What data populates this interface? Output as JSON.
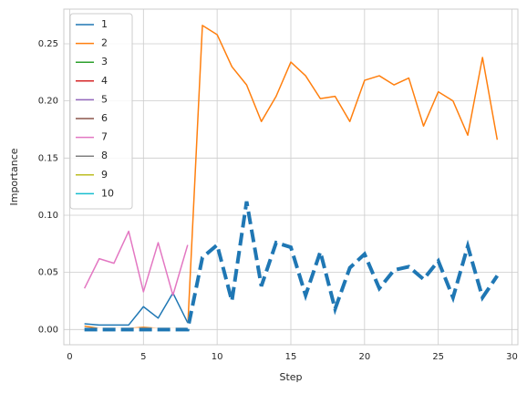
{
  "chart_data": {
    "type": "line",
    "x_label": "Step",
    "y_label": "Importance",
    "x": [
      1,
      2,
      3,
      4,
      5,
      6,
      7,
      8,
      9,
      10,
      11,
      12,
      13,
      14,
      15,
      16,
      17,
      18,
      19,
      20,
      21,
      22,
      23,
      24,
      25,
      26,
      27,
      28,
      29
    ],
    "series": [
      {
        "name": "1",
        "color": "#1f77b4",
        "values": [
          0.005,
          0.004,
          0.004,
          0.004,
          0.02,
          0.01,
          0.032,
          0.006,
          null,
          null,
          null,
          null,
          null,
          null,
          null,
          null,
          null,
          null,
          null,
          null,
          null,
          null,
          null,
          null,
          null,
          null,
          null,
          null,
          null
        ]
      },
      {
        "name": "2",
        "color": "#ff7f0e",
        "values": [
          0.003,
          0.001,
          0.001,
          0.001,
          0.002,
          0.001,
          0.001,
          0.001,
          0.266,
          0.258,
          0.23,
          0.214,
          0.182,
          0.204,
          0.234,
          0.222,
          0.202,
          0.204,
          0.182,
          0.218,
          0.222,
          0.214,
          0.22,
          0.178,
          0.208,
          0.2,
          0.17,
          0.238,
          0.166
        ]
      },
      {
        "name": "3",
        "color": "#2ca02c",
        "values": [
          0,
          0,
          0,
          0,
          0,
          0,
          0,
          0,
          null,
          null,
          null,
          null,
          null,
          null,
          null,
          null,
          null,
          null,
          null,
          null,
          null,
          null,
          null,
          null,
          null,
          null,
          null,
          null,
          null
        ]
      },
      {
        "name": "4",
        "color": "#d62728",
        "values": [
          0,
          0,
          0,
          0,
          0,
          0,
          0,
          0,
          null,
          null,
          null,
          null,
          null,
          null,
          null,
          null,
          null,
          null,
          null,
          null,
          null,
          null,
          null,
          null,
          null,
          null,
          null,
          null,
          null
        ]
      },
      {
        "name": "5",
        "color": "#9467bd",
        "values": [
          0,
          0,
          0,
          0,
          0,
          0,
          0,
          0,
          null,
          null,
          null,
          null,
          null,
          null,
          null,
          null,
          null,
          null,
          null,
          null,
          null,
          null,
          null,
          null,
          null,
          null,
          null,
          null,
          null
        ]
      },
      {
        "name": "6",
        "color": "#8c564b",
        "values": [
          0,
          0,
          0,
          0,
          0,
          0,
          0,
          0,
          null,
          null,
          null,
          null,
          null,
          null,
          null,
          null,
          null,
          null,
          null,
          null,
          null,
          null,
          null,
          null,
          null,
          null,
          null,
          null,
          null
        ]
      },
      {
        "name": "7",
        "color": "#e377c2",
        "values": [
          0.036,
          0.062,
          0.058,
          0.086,
          0.033,
          0.076,
          0.03,
          0.074,
          null,
          null,
          null,
          null,
          null,
          null,
          null,
          null,
          null,
          null,
          null,
          null,
          null,
          null,
          null,
          null,
          null,
          null,
          null,
          null,
          null
        ]
      },
      {
        "name": "8",
        "color": "#7f7f7f",
        "values": [
          0,
          0,
          0,
          0,
          0,
          0,
          0,
          0,
          null,
          null,
          null,
          null,
          null,
          null,
          null,
          null,
          null,
          null,
          null,
          null,
          null,
          null,
          null,
          null,
          null,
          null,
          null,
          null,
          null
        ]
      },
      {
        "name": "9",
        "color": "#bcbd22",
        "values": [
          0,
          0,
          0,
          0,
          0,
          0,
          0,
          0,
          null,
          null,
          null,
          null,
          null,
          null,
          null,
          null,
          null,
          null,
          null,
          null,
          null,
          null,
          null,
          null,
          null,
          null,
          null,
          null,
          null
        ]
      },
      {
        "name": "10",
        "color": "#17becf",
        "values": [
          0,
          0,
          0,
          0,
          0,
          0,
          0,
          0,
          null,
          null,
          null,
          null,
          null,
          null,
          null,
          null,
          null,
          null,
          null,
          null,
          null,
          null,
          null,
          null,
          null,
          null,
          null,
          null,
          null
        ]
      },
      {
        "color": "#1f77b4",
        "dashed": true,
        "values": [
          0,
          0,
          0,
          0,
          0,
          0,
          0,
          0,
          0.063,
          0.074,
          0.025,
          0.112,
          0.038,
          0.076,
          0.072,
          0.03,
          0.068,
          0.018,
          0.054,
          0.066,
          0.036,
          0.052,
          0.055,
          0.044,
          0.06,
          0.028,
          0.073,
          0.028,
          0.047
        ]
      }
    ],
    "xlim": [
      -0.4,
      30.4
    ],
    "xticks": [
      0,
      5,
      10,
      15,
      20,
      25,
      30
    ],
    "ylim": [
      -0.0133,
      0.2803
    ],
    "yticks": [
      {
        "value": 0,
        "label": "0.00"
      },
      {
        "value": 0.05,
        "label": "0.05"
      },
      {
        "value": 0.1,
        "label": "0.10"
      },
      {
        "value": 0.15,
        "label": "0.15"
      },
      {
        "value": 0.2,
        "label": "0.20"
      },
      {
        "value": 0.25,
        "label": "0.25"
      }
    ],
    "grid": true,
    "legend": "upper left"
  }
}
